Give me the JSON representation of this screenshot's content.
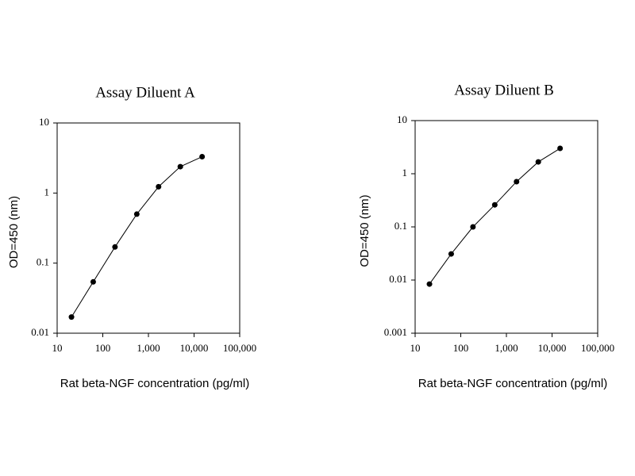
{
  "chart_data": [
    {
      "type": "line",
      "title": "Assay Diluent A",
      "x_label": "Rat beta-NGF concentration (pg/ml)",
      "y_label": "OD=450 (nm)",
      "xscale": "log",
      "yscale": "log",
      "color": "#000000",
      "x": [
        20.6,
        61.7,
        185,
        556,
        1667,
        5000,
        15000
      ],
      "values": [
        0.017,
        0.054,
        0.17,
        0.5,
        1.23,
        2.38,
        3.3
      ],
      "xlim": [
        10,
        100000
      ],
      "ylim": [
        0.01,
        10
      ],
      "xticks": [
        10,
        100,
        {
          "value": 1000,
          "label": "1,000"
        },
        {
          "value": 10000,
          "label": "10,000"
        },
        {
          "value": 100000,
          "label": "100,000"
        }
      ],
      "yticks": [
        0.01,
        0.1,
        1,
        10
      ]
    },
    {
      "type": "line",
      "title": "Assay Diluent B",
      "x_label": "Rat beta-NGF concentration (pg/ml)",
      "y_label": "OD=450 (nm)",
      "xscale": "log",
      "yscale": "log",
      "color": "#000000",
      "x": [
        20.6,
        61.7,
        185,
        556,
        1667,
        5000,
        15000
      ],
      "values": [
        0.0084,
        0.031,
        0.1,
        0.26,
        0.71,
        1.67,
        3.0
      ],
      "xlim": [
        10,
        100000
      ],
      "ylim": [
        0.001,
        10
      ],
      "xticks": [
        10,
        100,
        {
          "value": 1000,
          "label": "1,000"
        },
        {
          "value": 10000,
          "label": "10,000"
        },
        {
          "value": 100000,
          "label": "100,000"
        }
      ],
      "yticks": [
        0.001,
        0.01,
        0.1,
        1,
        10
      ]
    }
  ]
}
